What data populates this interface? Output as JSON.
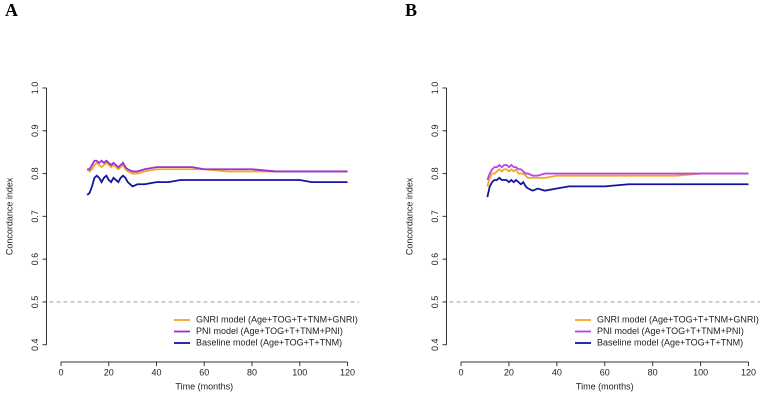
{
  "chart_data": [
    {
      "type": "line",
      "panel": "A",
      "xlabel": "Time (months)",
      "ylabel": "Concordance index",
      "x": [
        11,
        12,
        13,
        14,
        15,
        16,
        17,
        18,
        19,
        20,
        21,
        22,
        23,
        24,
        25,
        26,
        27,
        28,
        30,
        32,
        35,
        40,
        45,
        50,
        55,
        60,
        70,
        80,
        90,
        100,
        105,
        110,
        120
      ],
      "series": [
        {
          "name": "GNRI model (Age+TOG+T+TNM+GNRI)",
          "color": "#f5a623",
          "values": [
            0.81,
            0.805,
            0.81,
            0.82,
            0.825,
            0.82,
            0.815,
            0.82,
            0.825,
            0.82,
            0.815,
            0.82,
            0.815,
            0.81,
            0.815,
            0.82,
            0.81,
            0.805,
            0.8,
            0.8,
            0.805,
            0.81,
            0.81,
            0.81,
            0.81,
            0.81,
            0.805,
            0.805,
            0.805,
            0.805,
            0.805,
            0.805,
            0.805
          ]
        },
        {
          "name": "PNI model (Age+TOG+T+TNM+PNI)",
          "color": "#9b30d9",
          "values": [
            0.81,
            0.81,
            0.82,
            0.83,
            0.83,
            0.825,
            0.83,
            0.825,
            0.83,
            0.825,
            0.82,
            0.825,
            0.82,
            0.815,
            0.82,
            0.825,
            0.815,
            0.81,
            0.805,
            0.805,
            0.81,
            0.815,
            0.815,
            0.815,
            0.815,
            0.81,
            0.81,
            0.81,
            0.805,
            0.805,
            0.805,
            0.805,
            0.805
          ]
        },
        {
          "name": "Baseline model (Age+TOG+T+TNM)",
          "color": "#1414a0",
          "values": [
            0.75,
            0.755,
            0.77,
            0.79,
            0.795,
            0.79,
            0.78,
            0.79,
            0.795,
            0.785,
            0.78,
            0.79,
            0.785,
            0.78,
            0.79,
            0.795,
            0.79,
            0.78,
            0.77,
            0.775,
            0.775,
            0.78,
            0.78,
            0.785,
            0.785,
            0.785,
            0.785,
            0.785,
            0.785,
            0.785,
            0.78,
            0.78,
            0.78
          ]
        }
      ],
      "xlim": [
        -4.8,
        124.8
      ],
      "xticks": [
        0,
        20,
        40,
        60,
        80,
        100,
        120
      ],
      "ylim": [
        0.376,
        1.024
      ],
      "yticks": [
        0.4,
        0.5,
        0.6,
        0.7,
        0.8,
        0.9,
        {
          "value": 1,
          "label": "1.0"
        }
      ],
      "reference_line": {
        "value": 0.5,
        "color": "#aaaaaa"
      },
      "legend": "bottomright"
    },
    {
      "type": "line",
      "panel": "B",
      "xlabel": "Time (months)",
      "ylabel": "Concordance index",
      "x": [
        11,
        12,
        13,
        14,
        15,
        16,
        17,
        18,
        19,
        20,
        21,
        22,
        23,
        24,
        25,
        26,
        27,
        28,
        30,
        32,
        35,
        40,
        45,
        50,
        55,
        60,
        70,
        80,
        90,
        100,
        105,
        110,
        120
      ],
      "series": [
        {
          "name": "GNRI model (Age+TOG+T+TNM+GNRI)",
          "color": "#f5a623",
          "values": [
            0.77,
            0.79,
            0.8,
            0.8,
            0.805,
            0.81,
            0.805,
            0.81,
            0.81,
            0.805,
            0.81,
            0.805,
            0.81,
            0.8,
            0.8,
            0.8,
            0.795,
            0.79,
            0.79,
            0.79,
            0.79,
            0.795,
            0.795,
            0.795,
            0.795,
            0.795,
            0.795,
            0.795,
            0.795,
            0.8,
            0.8,
            0.8,
            0.8
          ]
        },
        {
          "name": "PNI model (Age+TOG+T+TNM+PNI)",
          "color": "#b845e8",
          "values": [
            0.785,
            0.8,
            0.81,
            0.815,
            0.815,
            0.82,
            0.815,
            0.82,
            0.82,
            0.815,
            0.82,
            0.815,
            0.815,
            0.81,
            0.81,
            0.805,
            0.8,
            0.8,
            0.795,
            0.795,
            0.8,
            0.8,
            0.8,
            0.8,
            0.8,
            0.8,
            0.8,
            0.8,
            0.8,
            0.8,
            0.8,
            0.8,
            0.8
          ]
        },
        {
          "name": "Baseline model (Age+TOG+T+TNM)",
          "color": "#1414a0",
          "values": [
            0.745,
            0.77,
            0.78,
            0.785,
            0.785,
            0.79,
            0.785,
            0.785,
            0.785,
            0.78,
            0.785,
            0.78,
            0.785,
            0.78,
            0.775,
            0.78,
            0.77,
            0.765,
            0.76,
            0.765,
            0.76,
            0.765,
            0.77,
            0.77,
            0.77,
            0.77,
            0.775,
            0.775,
            0.775,
            0.775,
            0.775,
            0.775,
            0.775
          ]
        }
      ],
      "xlim": [
        -4.8,
        124.8
      ],
      "xticks": [
        0,
        20,
        40,
        60,
        80,
        100,
        120
      ],
      "ylim": [
        0.376,
        1.024
      ],
      "yticks": [
        0.4,
        0.5,
        0.6,
        0.7,
        0.8,
        0.9,
        {
          "value": 1,
          "label": "1.0"
        }
      ],
      "reference_line": {
        "value": 0.5,
        "color": "#aaaaaa"
      },
      "legend": "bottomright"
    }
  ]
}
